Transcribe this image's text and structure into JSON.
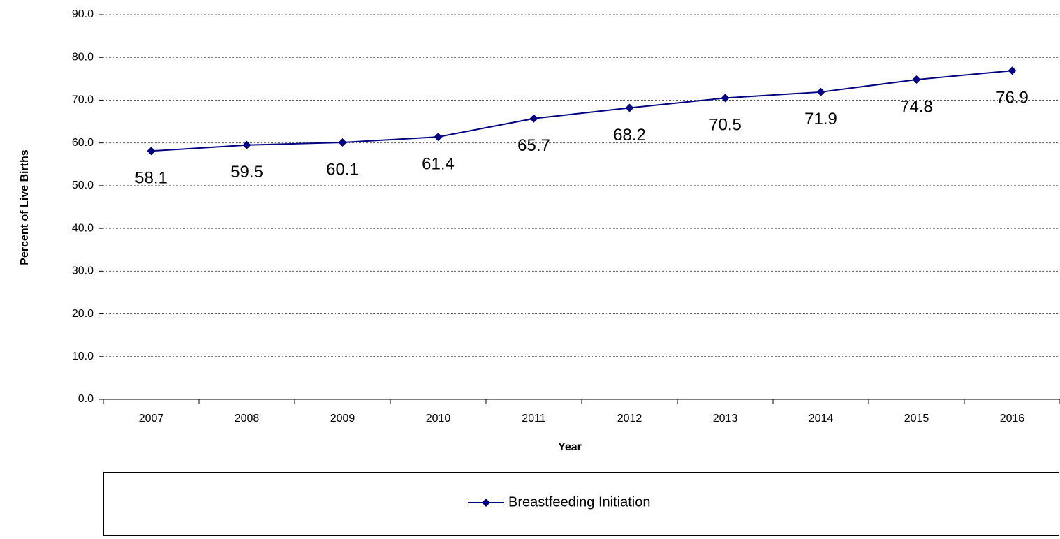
{
  "chart_data": {
    "type": "line",
    "y_label": "Percent of Live Births",
    "x_label": "Year",
    "categories": [
      "2007",
      "2008",
      "2009",
      "2010",
      "2011",
      "2012",
      "2013",
      "2014",
      "2015",
      "2016"
    ],
    "series": [
      {
        "name": "Breastfeeding Initiation",
        "color": "#000080",
        "values": [
          58.1,
          59.5,
          60.1,
          61.4,
          65.7,
          68.2,
          70.5,
          71.9,
          74.8,
          76.9
        ]
      }
    ],
    "ylim": [
      0,
      90
    ],
    "yticks": [
      {
        "value": 0,
        "label": "0.0"
      },
      {
        "value": 10,
        "label": "10.0"
      },
      {
        "value": 20,
        "label": "20.0"
      },
      {
        "value": 30,
        "label": "30.0"
      },
      {
        "value": 40,
        "label": "40.0"
      },
      {
        "value": 50,
        "label": "50.0"
      },
      {
        "value": 60,
        "label": "60.0"
      },
      {
        "value": 70,
        "label": "70.0"
      },
      {
        "value": 80,
        "label": "80.0"
      },
      {
        "value": 90,
        "label": "90.0"
      }
    ],
    "grid": true,
    "legend": "bottom"
  }
}
